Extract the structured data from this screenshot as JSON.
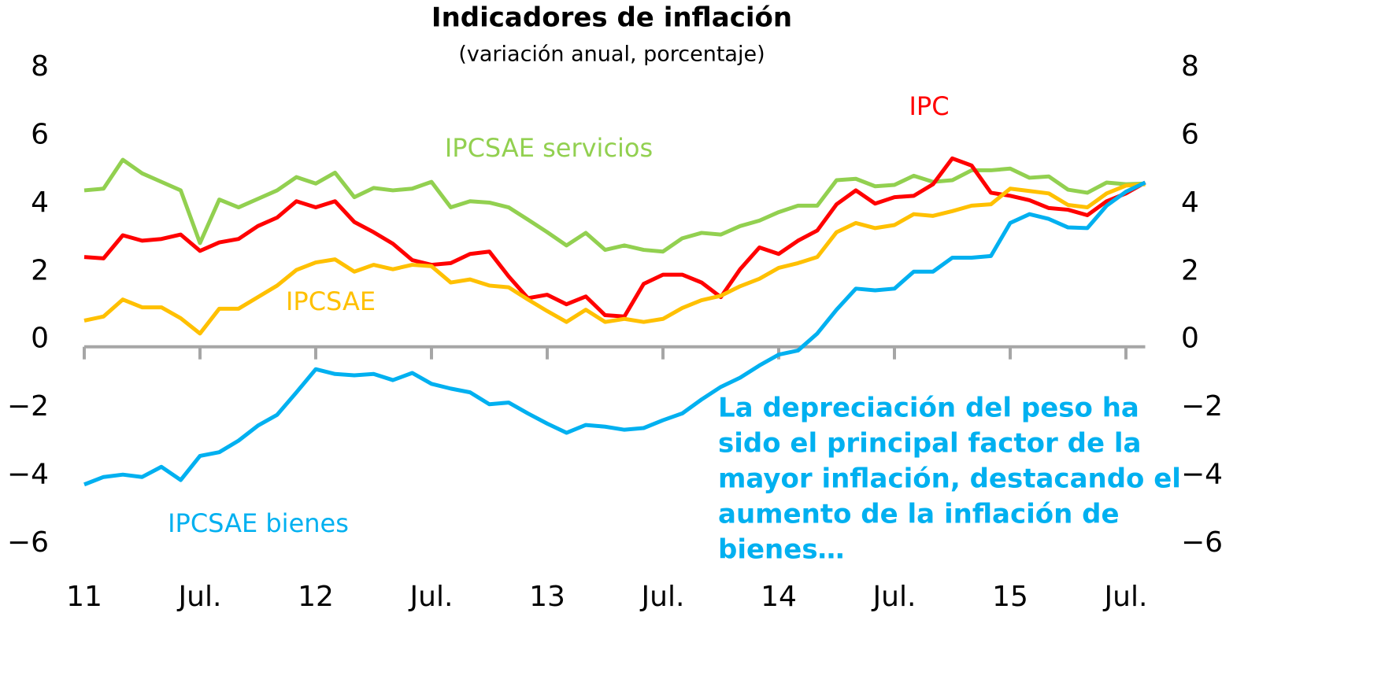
{
  "chart_data": {
    "type": "line",
    "title": "Indicadores de inflación",
    "subtitle": "(variación anual, porcentaje)",
    "categories": [
      "11",
      null,
      null,
      null,
      null,
      null,
      "Jul.",
      null,
      null,
      null,
      null,
      null,
      "12",
      null,
      null,
      null,
      null,
      null,
      "Jul.",
      null,
      null,
      null,
      null,
      null,
      "13",
      null,
      null,
      null,
      null,
      null,
      "Jul.",
      null,
      null,
      null,
      null,
      null,
      "14",
      null,
      null,
      null,
      null,
      null,
      "Jul.",
      null,
      null,
      null,
      null,
      null,
      "15",
      null,
      null,
      null,
      null,
      null,
      "Jul.",
      null
    ],
    "ylim": [
      -6,
      8
    ],
    "yticks": [
      {
        "value": -6,
        "label": "−6"
      },
      {
        "value": -4,
        "label": "−4"
      },
      {
        "value": -2,
        "label": "−2"
      },
      0,
      2,
      4,
      6,
      8
    ],
    "series": [
      {
        "name": "IPCSAE servicios",
        "color": "#92d050",
        "values": [
          4.6,
          4.65,
          5.5,
          5.1,
          4.85,
          4.6,
          3.05,
          4.33,
          4.1,
          4.35,
          4.6,
          4.99,
          4.8,
          5.12,
          4.4,
          4.67,
          4.6,
          4.65,
          4.85,
          4.1,
          4.28,
          4.24,
          4.1,
          3.74,
          3.37,
          2.98,
          3.35,
          2.85,
          2.98,
          2.85,
          2.8,
          3.19,
          3.35,
          3.3,
          3.55,
          3.71,
          3.96,
          4.15,
          4.15,
          4.9,
          4.94,
          4.72,
          4.76,
          5.03,
          4.85,
          4.9,
          5.19,
          5.19,
          5.24,
          4.97,
          5.01,
          4.62,
          4.53,
          4.83,
          4.78,
          4.8
        ]
      },
      {
        "name": "IPC",
        "color": "#ff0000",
        "values": [
          2.64,
          2.6,
          3.28,
          3.12,
          3.17,
          3.3,
          2.82,
          3.07,
          3.17,
          3.55,
          3.8,
          4.28,
          4.1,
          4.28,
          3.67,
          3.37,
          3.03,
          2.55,
          2.41,
          2.46,
          2.73,
          2.8,
          2.07,
          1.43,
          1.53,
          1.25,
          1.48,
          0.93,
          0.89,
          1.85,
          2.12,
          2.12,
          1.89,
          1.46,
          2.28,
          2.92,
          2.73,
          3.12,
          3.42,
          4.19,
          4.6,
          4.21,
          4.4,
          4.44,
          4.78,
          5.54,
          5.33,
          4.53,
          4.44,
          4.31,
          4.08,
          4.03,
          3.87,
          4.28,
          4.51,
          4.83
        ]
      },
      {
        "name": "IPCSAE",
        "color": "#ffc000",
        "values": [
          0.77,
          0.89,
          1.39,
          1.16,
          1.16,
          0.84,
          0.39,
          1.12,
          1.12,
          1.46,
          1.8,
          2.26,
          2.48,
          2.57,
          2.21,
          2.41,
          2.28,
          2.41,
          2.37,
          1.89,
          1.98,
          1.8,
          1.75,
          1.39,
          1.05,
          0.73,
          1.09,
          0.73,
          0.82,
          0.73,
          0.82,
          1.14,
          1.37,
          1.5,
          1.78,
          2.0,
          2.32,
          2.46,
          2.64,
          3.37,
          3.64,
          3.49,
          3.58,
          3.9,
          3.85,
          3.99,
          4.15,
          4.19,
          4.65,
          4.58,
          4.51,
          4.17,
          4.1,
          4.51,
          4.74,
          4.78
        ]
      },
      {
        "name": "IPCSAE bienes",
        "color": "#00b0f0",
        "values": [
          -4.05,
          -3.83,
          -3.76,
          -3.83,
          -3.53,
          -3.92,
          -3.21,
          -3.1,
          -2.76,
          -2.32,
          -2.0,
          -1.34,
          -0.66,
          -0.8,
          -0.84,
          -0.8,
          -0.98,
          -0.77,
          -1.09,
          -1.23,
          -1.34,
          -1.69,
          -1.64,
          -1.96,
          -2.26,
          -2.53,
          -2.3,
          -2.35,
          -2.44,
          -2.39,
          -2.16,
          -1.96,
          -1.55,
          -1.18,
          -0.91,
          -0.55,
          -0.23,
          -0.11,
          0.39,
          1.09,
          1.71,
          1.66,
          1.71,
          2.21,
          2.21,
          2.62,
          2.62,
          2.67,
          3.64,
          3.9,
          3.76,
          3.51,
          3.49,
          4.15,
          4.56,
          4.83
        ]
      }
    ],
    "annotations": [
      {
        "lines": [
          "La depreciación del peso ha",
          "sido el principal factor de la",
          "mayor inflación, destacando el",
          "aumento de la inflación de",
          "bienes…"
        ],
        "color": "#00b0f0"
      }
    ]
  }
}
